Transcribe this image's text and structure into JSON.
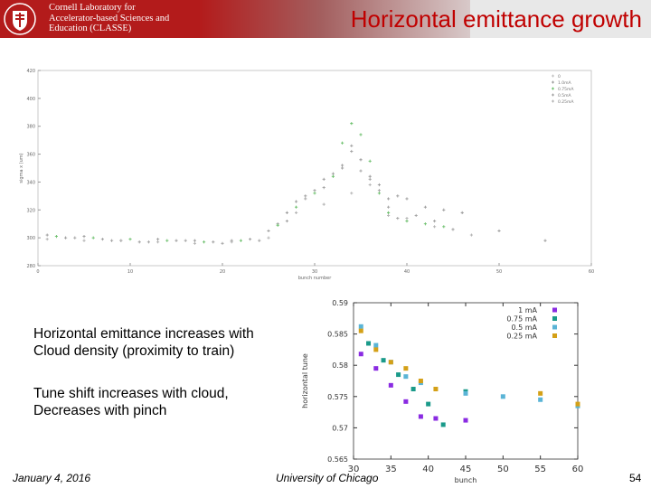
{
  "header": {
    "org_lines": [
      "Cornell Laboratory for",
      "Accelerator-based Sciences and",
      "Education (CLASSE)"
    ],
    "title": "Horizontal emittance growth",
    "colors": {
      "bar": "#b31b1b",
      "title": "#c00000"
    }
  },
  "bullets": [
    {
      "line1": "Horizontal emittance increases with",
      "line2": "Cloud density (proximity to train)"
    },
    {
      "line1": "Tune shift increases with cloud,",
      "line2": "Decreases with pinch"
    }
  ],
  "footer": {
    "date": "January 4, 2016",
    "venue": "University of Chicago",
    "page": "54"
  },
  "chart_data": [
    {
      "type": "scatter",
      "title": "",
      "xlabel": "bunch number",
      "ylabel": "sigma x (um)",
      "xlim": [
        0,
        60
      ],
      "ylim": [
        280,
        420
      ],
      "xticks": [
        0,
        10,
        20,
        30,
        40,
        50,
        60
      ],
      "yticks": [
        280,
        300,
        320,
        340,
        360,
        380,
        400,
        420
      ],
      "legend": [
        "0",
        "1.0mA",
        "0.75mA",
        "0.5mA",
        "0.25mA"
      ],
      "legend_position": "top-right",
      "series": [
        {
          "name": "1.0mA",
          "color": "#9a9a9a",
          "x": [
            1,
            3,
            5,
            7,
            9,
            11,
            13,
            15,
            17,
            19,
            21,
            23,
            25,
            26,
            27,
            28,
            29,
            30,
            31,
            32,
            33,
            34,
            35,
            36,
            37,
            38,
            39,
            40,
            42,
            44,
            46,
            50,
            55
          ],
          "y": [
            302,
            300,
            301,
            299,
            298,
            297,
            299,
            298,
            298,
            297,
            298,
            299,
            305,
            310,
            318,
            326,
            330,
            334,
            342,
            346,
            352,
            366,
            356,
            344,
            338,
            328,
            330,
            328,
            322,
            320,
            318,
            305,
            298
          ]
        },
        {
          "name": "0.75mA",
          "color": "#6abf6a",
          "x": [
            2,
            6,
            10,
            14,
            18,
            22,
            26,
            28,
            30,
            32,
            33,
            34,
            35,
            36,
            37,
            38,
            40,
            42,
            44
          ],
          "y": [
            301,
            300,
            299,
            298,
            297,
            298,
            309,
            322,
            332,
            344,
            368,
            382,
            374,
            355,
            332,
            318,
            312,
            310,
            308
          ]
        },
        {
          "name": "0.5mA",
          "color": "#a0a0a0",
          "x": [
            4,
            8,
            12,
            16,
            20,
            24,
            27,
            29,
            31,
            33,
            34,
            35,
            36,
            37,
            38,
            39,
            41,
            43,
            45
          ],
          "y": [
            300,
            298,
            297,
            298,
            296,
            298,
            312,
            328,
            336,
            350,
            362,
            348,
            342,
            334,
            322,
            314,
            316,
            312,
            306
          ]
        },
        {
          "name": "0.25mA",
          "color": "#b0b0b0",
          "x": [
            1,
            5,
            9,
            13,
            17,
            21,
            25,
            28,
            31,
            34,
            36,
            38,
            40,
            43,
            47
          ],
          "y": [
            299,
            298,
            298,
            297,
            296,
            297,
            300,
            318,
            324,
            332,
            338,
            316,
            314,
            308,
            302
          ]
        }
      ]
    },
    {
      "type": "scatter",
      "title": "",
      "xlabel": "bunch",
      "ylabel": "horizontal tune",
      "xlim": [
        30,
        60
      ],
      "ylim": [
        0.565,
        0.59
      ],
      "xticks": [
        "30",
        "35",
        "40",
        "45",
        "50",
        "55",
        "60"
      ],
      "yticks": [
        "0.565",
        "0.57",
        "0.575",
        "0.58",
        "0.585",
        "0.59"
      ],
      "legend_position": "top-right",
      "series": [
        {
          "name": "1 mA",
          "color": "#8a2be2",
          "x": [
            31,
            33,
            35,
            37,
            39,
            41,
            45
          ],
          "y": [
            0.5818,
            0.5795,
            0.5768,
            0.5742,
            0.5718,
            0.5715,
            0.5712
          ]
        },
        {
          "name": "0.75 mA",
          "color": "#1a9a8a",
          "x": [
            32,
            34,
            36,
            38,
            40,
            42,
            45
          ],
          "y": [
            0.5835,
            0.5808,
            0.5785,
            0.5762,
            0.5738,
            0.5705,
            0.5758
          ]
        },
        {
          "name": "0.5 mA",
          "color": "#5ab4d6",
          "x": [
            31,
            33,
            35,
            37,
            39,
            45,
            50,
            55,
            60
          ],
          "y": [
            0.5862,
            0.5832,
            0.5805,
            0.5782,
            0.5772,
            0.5755,
            0.575,
            0.5745,
            0.5735
          ]
        },
        {
          "name": "0.25 mA",
          "color": "#d4a017",
          "x": [
            31,
            33,
            35,
            37,
            39,
            41,
            55,
            60
          ],
          "y": [
            0.5855,
            0.5825,
            0.5805,
            0.5795,
            0.5775,
            0.5762,
            0.5755,
            0.5738
          ]
        }
      ]
    }
  ]
}
